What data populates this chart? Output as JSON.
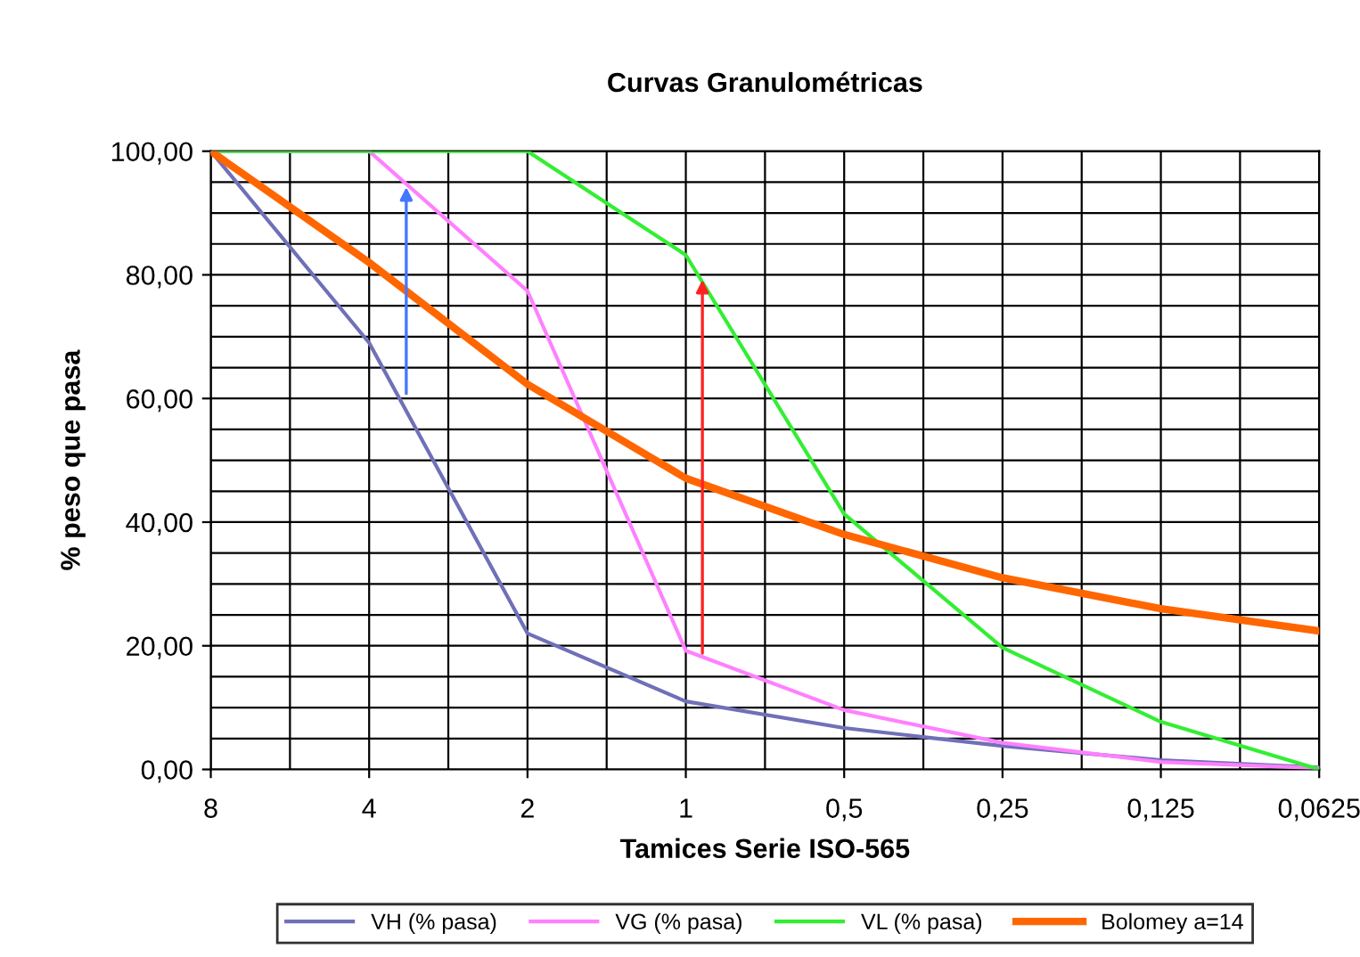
{
  "chart_data": {
    "type": "line",
    "title": "Curvas Granulométricas",
    "xlabel": "Tamices Serie ISO-565",
    "ylabel": "% peso que pasa",
    "x": [
      8,
      4,
      2,
      1,
      0.5,
      0.25,
      0.125,
      0.0625
    ],
    "series": [
      {
        "name": "VH (% pasa)",
        "color": "#7070b8",
        "values": [
          100,
          69,
          22,
          11,
          6.7,
          3.8,
          1.5,
          0.3
        ]
      },
      {
        "name": "VG (% pasa)",
        "color": "#ff80ff",
        "values": [
          100,
          100,
          77.4,
          19.2,
          9.6,
          4.3,
          1.2,
          0.2
        ]
      },
      {
        "name": "VL (% pasa)",
        "color": "#33ee33",
        "values": [
          100,
          100,
          100,
          83.2,
          41.3,
          19.7,
          7.7,
          0
        ]
      },
      {
        "name": "Bolomey a=14",
        "color": "#ff6600",
        "values": [
          100,
          82,
          62.3,
          47.1,
          38,
          31,
          26,
          22.4
        ]
      }
    ],
    "log": "x",
    "xlim": [
      8,
      0.0625
    ],
    "xticks": [
      8,
      4,
      2,
      1,
      {
        "value": 0.5,
        "label": "0,5"
      },
      {
        "value": 0.25,
        "label": "0,25"
      },
      {
        "value": 0.125,
        "label": "0,125"
      },
      {
        "value": 0.0625,
        "label": "0,0625"
      }
    ],
    "ylim": [
      0,
      100
    ],
    "yticks": [
      {
        "value": 0,
        "label": "0,00"
      },
      {
        "value": 20,
        "label": "20,00"
      },
      {
        "value": 40,
        "label": "40,00"
      },
      {
        "value": 60,
        "label": "60,00"
      },
      {
        "value": 80,
        "label": "80,00"
      },
      {
        "value": 100,
        "label": "100,00"
      }
    ],
    "grid": true,
    "legend": "bottom",
    "marker": "none",
    "line_style": "solid"
  }
}
